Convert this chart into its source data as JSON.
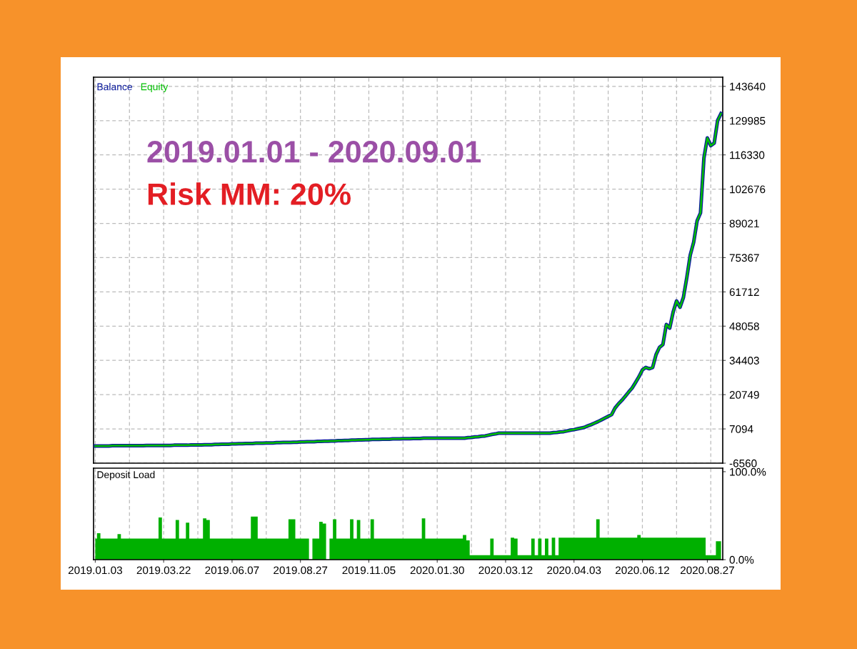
{
  "chart_data": [
    {
      "type": "line",
      "legend": "top left",
      "grid": true,
      "annotations": [
        "2019.01.01 - 2020.09.01",
        "Risk MM: 20%"
      ],
      "categories": [
        null,
        null,
        null,
        null,
        null,
        null,
        null,
        null,
        null,
        null,
        null,
        null,
        null,
        null,
        null,
        null,
        null,
        null,
        null,
        null,
        null,
        null,
        null,
        null,
        null,
        null,
        null,
        null,
        null,
        null,
        null,
        null,
        null,
        null,
        null,
        null,
        null,
        null,
        null,
        null,
        null,
        null,
        null,
        null,
        null,
        null,
        null,
        null,
        null,
        null,
        null,
        null,
        null,
        null,
        null,
        null,
        null,
        null,
        null,
        null,
        null,
        null,
        null,
        null,
        null,
        null,
        null,
        null,
        null,
        null,
        null,
        null,
        null,
        null,
        null,
        null,
        null,
        null,
        null,
        null,
        null,
        null,
        null,
        null,
        null,
        null,
        null,
        null,
        null,
        null,
        null,
        null,
        null,
        null,
        null,
        null,
        null,
        null,
        null,
        null,
        null,
        null,
        null,
        null,
        null,
        null,
        null,
        null,
        null,
        null,
        null,
        null,
        null,
        null,
        null,
        null,
        null,
        null,
        null,
        null,
        null,
        null,
        null,
        null,
        null,
        null,
        null,
        null,
        null,
        null,
        null,
        null,
        null,
        null,
        null,
        null,
        null,
        null,
        null,
        null,
        null,
        null,
        null,
        null,
        null,
        null,
        null,
        null,
        null,
        null,
        null,
        null,
        null,
        null,
        null,
        null,
        null,
        null,
        null,
        null,
        null,
        null,
        null,
        null,
        null,
        null,
        null,
        null,
        null,
        null,
        null,
        null,
        null,
        null,
        null,
        null,
        null,
        null,
        null,
        null,
        null,
        null,
        null,
        null
      ],
      "ylim": [
        -6560,
        147300
      ],
      "yticks": [
        -6560,
        7094,
        20749,
        34403,
        48058,
        61712,
        75367,
        89021,
        102676,
        116330,
        129985,
        143640
      ],
      "series": [
        {
          "name": "Equity",
          "color": "#00c000",
          "values": [
            300,
            300,
            300,
            300,
            300,
            400,
            400,
            400,
            400,
            400,
            400,
            400,
            400,
            400,
            400,
            500,
            500,
            500,
            500,
            500,
            500,
            500,
            500,
            600,
            600,
            600,
            600,
            600,
            700,
            700,
            700,
            700,
            800,
            800,
            800,
            900,
            900,
            1000,
            1000,
            1000,
            1100,
            1100,
            1200,
            1200,
            1300,
            1300,
            1300,
            1400,
            1400,
            1400,
            1500,
            1500,
            1500,
            1600,
            1600,
            1700,
            1700,
            1700,
            1800,
            1800,
            1900,
            1900,
            2000,
            2000,
            2000,
            2100,
            2100,
            2200,
            2200,
            2300,
            2300,
            2400,
            2400,
            2500,
            2500,
            2600,
            2600,
            2700,
            2700,
            2800,
            2800,
            2900,
            2900,
            2900,
            3000,
            3000,
            3000,
            3100,
            3100,
            3100,
            3200,
            3200,
            3200,
            3300,
            3300,
            3300,
            3400,
            3400,
            3400,
            3400,
            3400,
            3400,
            3400,
            3400,
            3400,
            3400,
            3400,
            3400,
            3400,
            3600,
            3700,
            3900,
            4000,
            4200,
            4300,
            4600,
            4900,
            5100,
            5400,
            5400,
            5400,
            5400,
            5400,
            5400,
            5400,
            5400,
            5400,
            5400,
            5400,
            5400,
            5400,
            5400,
            5400,
            5400,
            5600,
            5700,
            5900,
            6000,
            6300,
            6600,
            6800,
            7100,
            7400,
            7700,
            8300,
            8800,
            9400,
            10000,
            10700,
            11400,
            12100,
            12800,
            15400,
            17100,
            18500,
            20100,
            21800,
            23400,
            25600,
            27900,
            30600,
            31600,
            31100,
            31600,
            36700,
            39600,
            40700,
            48700,
            47300,
            53700,
            58100,
            55600,
            59500,
            67500,
            76400,
            81500,
            90000,
            93200,
            115100,
            123100,
            120000,
            121000,
            130000,
            132800
          ]
        },
        {
          "name": "Balance",
          "color": "#0a1a9c",
          "values": [
            300,
            300,
            300,
            300,
            300,
            400,
            400,
            400,
            400,
            400,
            400,
            400,
            400,
            400,
            400,
            500,
            500,
            500,
            500,
            500,
            500,
            500,
            500,
            600,
            600,
            600,
            600,
            600,
            700,
            700,
            700,
            700,
            800,
            800,
            800,
            900,
            900,
            1000,
            1000,
            1000,
            1100,
            1100,
            1200,
            1200,
            1300,
            1300,
            1300,
            1400,
            1400,
            1400,
            1500,
            1500,
            1500,
            1600,
            1600,
            1700,
            1700,
            1700,
            1800,
            1800,
            1900,
            1900,
            2000,
            2000,
            2000,
            2100,
            2100,
            2200,
            2200,
            2300,
            2300,
            2400,
            2400,
            2500,
            2500,
            2600,
            2600,
            2700,
            2700,
            2800,
            2800,
            2900,
            2900,
            2900,
            3000,
            3000,
            3000,
            3100,
            3100,
            3100,
            3200,
            3200,
            3200,
            3300,
            3300,
            3300,
            3400,
            3400,
            3400,
            3400,
            3400,
            3400,
            3400,
            3400,
            3400,
            3400,
            3400,
            3400,
            3400,
            3600,
            3700,
            3900,
            4000,
            4200,
            4300,
            4600,
            4900,
            5100,
            5400,
            5400,
            5400,
            5400,
            5400,
            5400,
            5400,
            5400,
            5400,
            5400,
            5400,
            5400,
            5400,
            5400,
            5400,
            5400,
            5600,
            5700,
            5900,
            6000,
            6300,
            6600,
            6800,
            7100,
            7400,
            7700,
            8300,
            8800,
            9400,
            10000,
            10700,
            11400,
            12100,
            12800,
            15400,
            17100,
            18500,
            20100,
            21800,
            23400,
            25600,
            27900,
            30600,
            31600,
            31100,
            31600,
            36700,
            39600,
            40700,
            48700,
            47300,
            53700,
            58100,
            55600,
            59500,
            67500,
            76400,
            81500,
            90000,
            93200,
            115100,
            123100,
            120000,
            121000,
            130000,
            132800
          ]
        }
      ]
    },
    {
      "type": "area",
      "title": "Deposit Load",
      "grid": "x",
      "categories": [
        "2019.01.03",
        null,
        null,
        null,
        null,
        null,
        null,
        null,
        null,
        null,
        null,
        null,
        null,
        null,
        null,
        null,
        null,
        null,
        null,
        null,
        "2019.03.22",
        null,
        null,
        null,
        null,
        null,
        null,
        null,
        null,
        null,
        null,
        null,
        null,
        null,
        null,
        null,
        null,
        null,
        null,
        null,
        "2019.06.07",
        null,
        null,
        null,
        null,
        null,
        null,
        null,
        null,
        null,
        null,
        null,
        null,
        null,
        null,
        null,
        null,
        null,
        null,
        null,
        "2019.08.27",
        null,
        null,
        null,
        null,
        null,
        null,
        null,
        null,
        null,
        null,
        null,
        null,
        null,
        null,
        null,
        null,
        null,
        null,
        null,
        "2019.11.05",
        null,
        null,
        null,
        null,
        null,
        null,
        null,
        null,
        null,
        null,
        null,
        null,
        null,
        null,
        null,
        null,
        null,
        null,
        null,
        "2020.01.30",
        null,
        null,
        null,
        null,
        null,
        null,
        null,
        null,
        null,
        null,
        null,
        null,
        null,
        null,
        null,
        null,
        null,
        null,
        null,
        "2020.03.12",
        null,
        null,
        null,
        null,
        null,
        null,
        null,
        null,
        null,
        null,
        null,
        null,
        null,
        null,
        null,
        null,
        null,
        null,
        null,
        "2020.04.03",
        null,
        null,
        null,
        null,
        null,
        null,
        null,
        null,
        null,
        null,
        null,
        null,
        null,
        null,
        null,
        null,
        null,
        null,
        null,
        "2020.06.12",
        null,
        null,
        null,
        null,
        null,
        null,
        null,
        null,
        null,
        null,
        null,
        null,
        null,
        null,
        null,
        null,
        null,
        null,
        "2020.08.27",
        null,
        null,
        null,
        null
      ],
      "ylim": [
        0,
        104
      ],
      "yticks": [
        {
          "value": 0,
          "label": "0.0%"
        },
        {
          "value": 100,
          "label": "100.0%"
        }
      ],
      "series": [
        {
          "color": "#00b000",
          "values": [
            24,
            30,
            24,
            24,
            24,
            24,
            24,
            29,
            24,
            24,
            24,
            24,
            24,
            24,
            24,
            24,
            24,
            24,
            24,
            48,
            24,
            24,
            24,
            24,
            45,
            24,
            24,
            42,
            24,
            24,
            24,
            24,
            47,
            45,
            24,
            24,
            24,
            24,
            24,
            24,
            24,
            24,
            24,
            24,
            24,
            24,
            49,
            49,
            24,
            24,
            24,
            24,
            24,
            24,
            24,
            24,
            24,
            46,
            46,
            24,
            24,
            24,
            24,
            0,
            24,
            24,
            43,
            41,
            0,
            24,
            46,
            24,
            24,
            24,
            24,
            46,
            24,
            45,
            24,
            24,
            24,
            46,
            24,
            24,
            24,
            24,
            24,
            24,
            24,
            24,
            24,
            24,
            24,
            24,
            24,
            24,
            47,
            24,
            24,
            24,
            24,
            24,
            24,
            24,
            24,
            24,
            24,
            24,
            28,
            22,
            5,
            5,
            5,
            5,
            5,
            5,
            24,
            5,
            5,
            5,
            5,
            5,
            25,
            24,
            5,
            5,
            5,
            5,
            24,
            5,
            24,
            5,
            24,
            5,
            25,
            5,
            25,
            25,
            25,
            25,
            25,
            25,
            25,
            25,
            25,
            25,
            25,
            46,
            25,
            25,
            25,
            25,
            25,
            25,
            25,
            25,
            25,
            25,
            25,
            28,
            25,
            25,
            25,
            25,
            25,
            25,
            25,
            25,
            25,
            25,
            25,
            25,
            25,
            25,
            25,
            25,
            25,
            25,
            25,
            5,
            5,
            5,
            21,
            21
          ]
        }
      ]
    }
  ]
}
